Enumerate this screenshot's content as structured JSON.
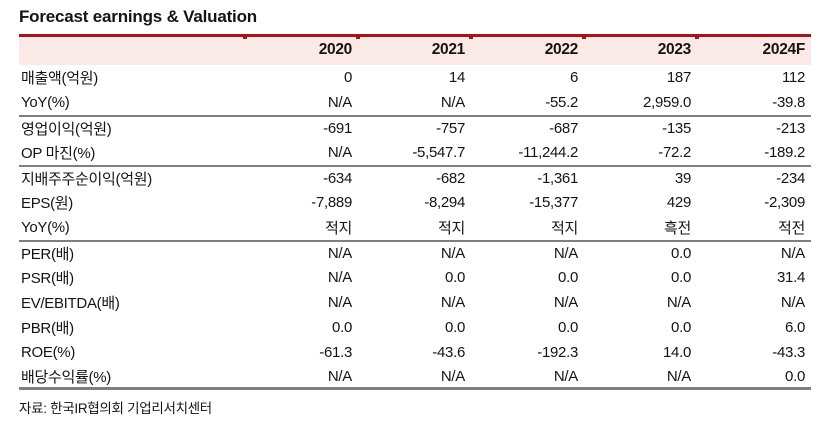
{
  "title": "Forecast earnings & Valuation",
  "source_note": "자료: 한국IR협의회 기업리서치센터",
  "colors": {
    "accent_red": "#aa1216",
    "header_bg": "#fbe9e7",
    "divider_gray": "#7f7f7f",
    "text": "#141414"
  },
  "table": {
    "header": [
      "",
      "2020",
      "2021",
      "2022",
      "2023",
      "2024F"
    ],
    "rows": [
      {
        "label": "매출액(억원)",
        "values": [
          "0",
          "14",
          "6",
          "187",
          "112"
        ]
      },
      {
        "label": "YoY(%)",
        "values": [
          "N/A",
          "N/A",
          "-55.2",
          "2,959.0",
          "-39.8"
        ]
      },
      {
        "label": "영업이익(억원)",
        "values": [
          "-691",
          "-757",
          "-687",
          "-135",
          "-213"
        ],
        "group_start": true
      },
      {
        "label": "OP 마진(%)",
        "values": [
          "N/A",
          "-5,547.7",
          "-11,244.2",
          "-72.2",
          "-189.2"
        ]
      },
      {
        "label": "지배주주순이익(억원)",
        "values": [
          "-634",
          "-682",
          "-1,361",
          "39",
          "-234"
        ],
        "group_start": true
      },
      {
        "label": "EPS(원)",
        "values": [
          "-7,889",
          "-8,294",
          "-15,377",
          "429",
          "-2,309"
        ]
      },
      {
        "label": "YoY(%)",
        "values": [
          "적지",
          "적지",
          "적지",
          "흑전",
          "적전"
        ]
      },
      {
        "label": "PER(배)",
        "values": [
          "N/A",
          "N/A",
          "N/A",
          "0.0",
          "N/A"
        ],
        "group_start": true
      },
      {
        "label": "PSR(배)",
        "values": [
          "N/A",
          "0.0",
          "0.0",
          "0.0",
          "31.4"
        ]
      },
      {
        "label": "EV/EBITDA(배)",
        "values": [
          "N/A",
          "N/A",
          "N/A",
          "N/A",
          "N/A"
        ]
      },
      {
        "label": "PBR(배)",
        "values": [
          "0.0",
          "0.0",
          "0.0",
          "0.0",
          "6.0"
        ]
      },
      {
        "label": "ROE(%)",
        "values": [
          "-61.3",
          "-43.6",
          "-192.3",
          "14.0",
          "-43.3"
        ]
      },
      {
        "label": "배당수익률(%)",
        "values": [
          "N/A",
          "N/A",
          "N/A",
          "N/A",
          "0.0"
        ]
      }
    ]
  }
}
